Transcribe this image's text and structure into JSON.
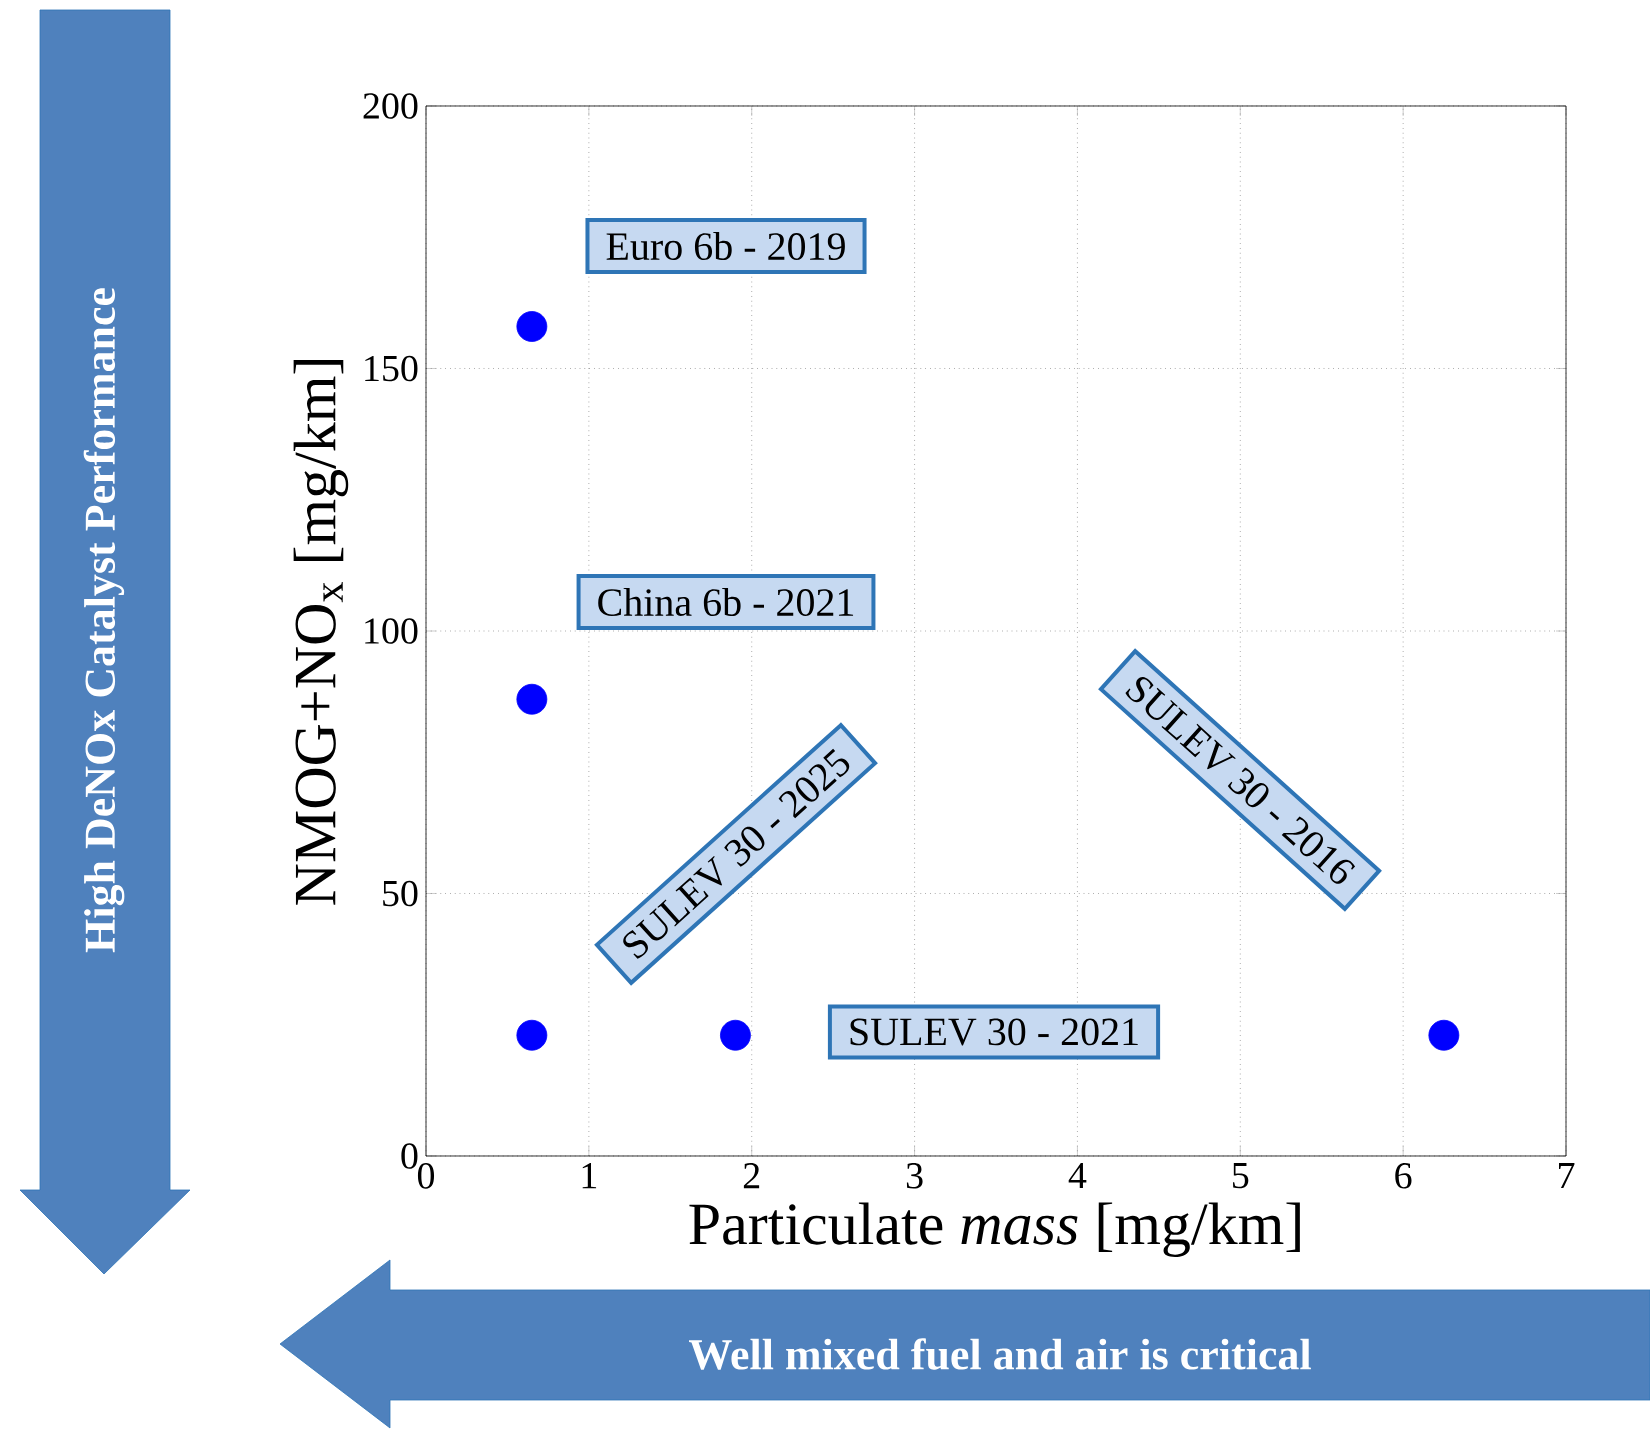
{
  "chart_data": {
    "type": "scatter",
    "xlabel": "Particulate *mass* [mg/km]",
    "ylabel": "NMOG+NO$_{x}$ [mg/km]",
    "x": [
      0.65,
      0.65,
      0.65,
      1.9,
      6.25
    ],
    "values": [
      158,
      87,
      23,
      23,
      23
    ],
    "color": "#0000ff",
    "marker": "circle",
    "xlim": [
      0,
      7
    ],
    "ylim": [
      0,
      200
    ],
    "xticks": [
      0,
      1,
      2,
      3,
      4,
      5,
      6,
      7
    ],
    "yticks": [
      0,
      50,
      100,
      150,
      200
    ],
    "grid": true,
    "annotations": [
      "Euro 6b - 2019",
      "China 6b - 2021",
      "SULEV 30 - 2025",
      "SULEV 30 - 2021",
      "SULEV 30 - 2016",
      "High DeNOx Catalyst Performance",
      "Well mixed fuel and air is critical"
    ]
  }
}
